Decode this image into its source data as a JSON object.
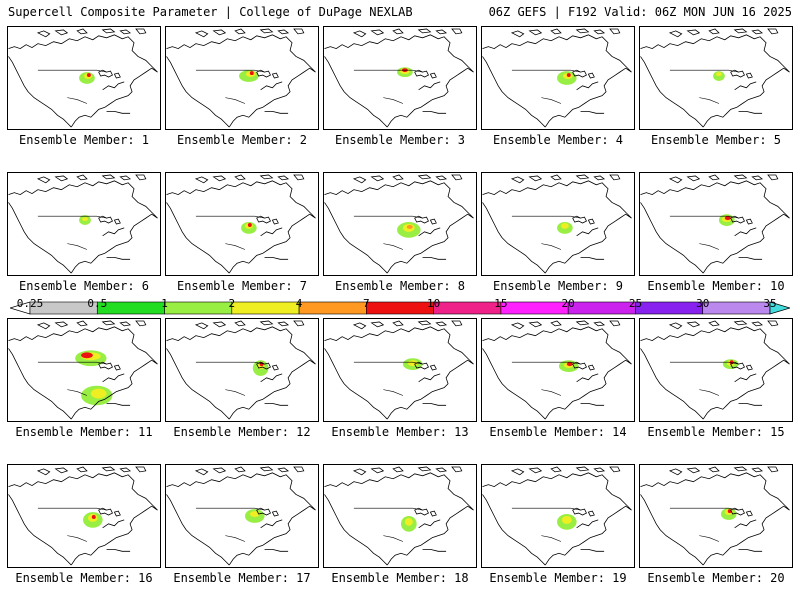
{
  "header": {
    "left": "Supercell Composite Parameter | College of DuPage NEXLAB",
    "right": "06Z GEFS | F192 Valid: 06Z MON JUN 16 2025"
  },
  "members": [
    {
      "caption": "Ensemble Member: 1"
    },
    {
      "caption": "Ensemble Member: 2"
    },
    {
      "caption": "Ensemble Member: 3"
    },
    {
      "caption": "Ensemble Member: 4"
    },
    {
      "caption": "Ensemble Member: 5"
    },
    {
      "caption": "Ensemble Member: 6"
    },
    {
      "caption": "Ensemble Member: 7"
    },
    {
      "caption": "Ensemble Member: 8"
    },
    {
      "caption": "Ensemble Member: 9"
    },
    {
      "caption": "Ensemble Member: 10"
    },
    {
      "caption": "Ensemble Member: 11"
    },
    {
      "caption": "Ensemble Member: 12"
    },
    {
      "caption": "Ensemble Member: 13"
    },
    {
      "caption": "Ensemble Member: 14"
    },
    {
      "caption": "Ensemble Member: 15"
    },
    {
      "caption": "Ensemble Member: 16"
    },
    {
      "caption": "Ensemble Member: 17"
    },
    {
      "caption": "Ensemble Member: 18"
    },
    {
      "caption": "Ensemble Member: 19"
    },
    {
      "caption": "Ensemble Member: 20"
    }
  ],
  "colorbar": {
    "labels": [
      "0.25",
      "0.5",
      "1",
      "2",
      "4",
      "7",
      "10",
      "15",
      "20",
      "25",
      "30",
      "35"
    ],
    "colors": [
      "#ffffff",
      "#c8c8c8",
      "#22dd22",
      "#99ee44",
      "#eeee22",
      "#ff9922",
      "#ee1111",
      "#ee2288",
      "#ff22ff",
      "#cc22ee",
      "#8822ee",
      "#bb88ee",
      "#44dddd"
    ]
  }
}
